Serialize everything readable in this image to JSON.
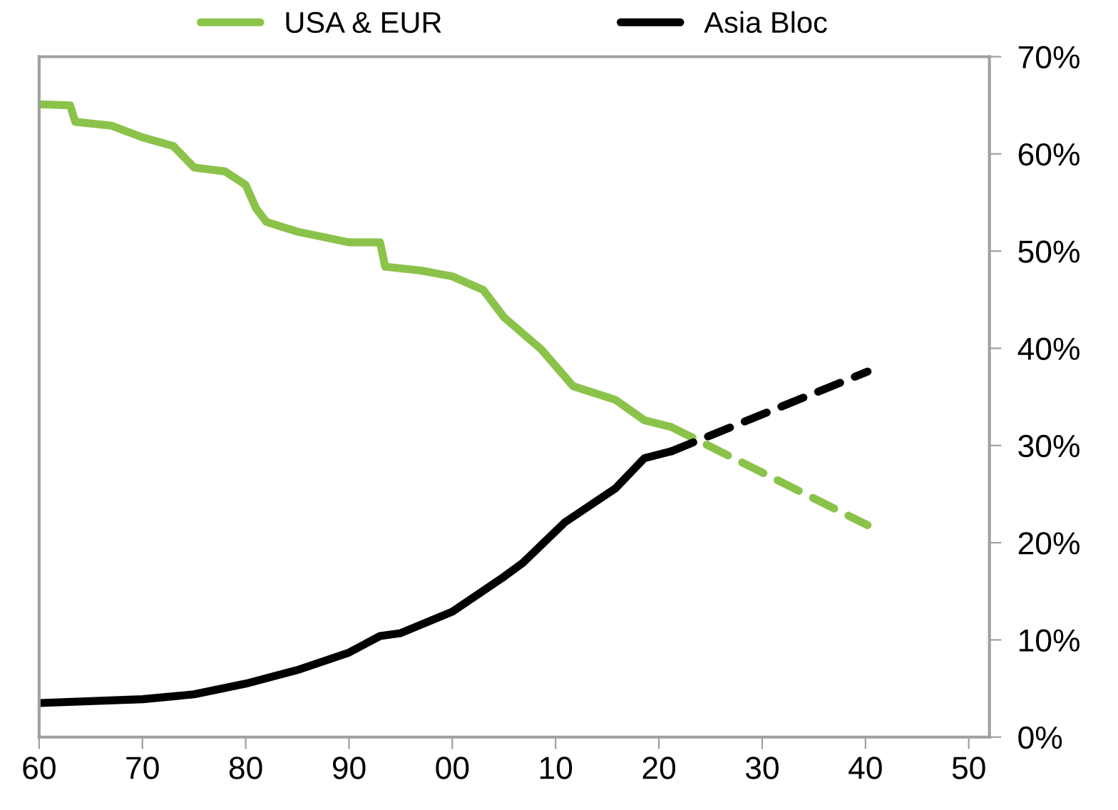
{
  "chart_data": {
    "type": "line",
    "xlim": [
      1960,
      2052
    ],
    "xticks": [
      {
        "value": 1960,
        "label": "60"
      },
      {
        "value": 1970,
        "label": "70"
      },
      {
        "value": 1980,
        "label": "80"
      },
      {
        "value": 1990,
        "label": "90"
      },
      {
        "value": 2000,
        "label": "00"
      },
      {
        "value": 2010,
        "label": "10"
      },
      {
        "value": 2020,
        "label": "20"
      },
      {
        "value": 2030,
        "label": "30"
      },
      {
        "value": 2040,
        "label": "40"
      },
      {
        "value": 2050,
        "label": "50"
      }
    ],
    "ylim": [
      0,
      70
    ],
    "yticks": [
      {
        "value": 0,
        "label": "0%"
      },
      {
        "value": 10,
        "label": "10%"
      },
      {
        "value": 20,
        "label": "20%"
      },
      {
        "value": 30,
        "label": "30%"
      },
      {
        "value": 40,
        "label": "40%"
      },
      {
        "value": 50,
        "label": "50%"
      },
      {
        "value": 60,
        "label": "60%"
      },
      {
        "value": 70,
        "label": "70%"
      }
    ],
    "grid": false,
    "legend": "top",
    "marker": "none",
    "series": [
      {
        "name": "USA & EUR",
        "color": "#8bc34a",
        "line_style": "solid",
        "x": [
          1960,
          1963,
          1963.5,
          1967,
          1970,
          1973,
          1975,
          1978,
          1980,
          1981,
          1982,
          1985,
          1990,
          1993,
          1993.5,
          1997,
          2000,
          2003,
          2005,
          2008.6,
          2011.7,
          2015.8,
          2018.6,
          2021.2
        ],
        "values": [
          65.1,
          65.0,
          63.3,
          62.9,
          61.7,
          60.8,
          58.6,
          58.2,
          56.8,
          54.4,
          53.0,
          52.0,
          50.9,
          50.9,
          48.4,
          48.0,
          47.4,
          46.0,
          43.2,
          39.9,
          36.1,
          34.7,
          32.6,
          31.9
        ]
      },
      {
        "color": "#8bc34a",
        "line_style": "dashed",
        "x": [
          2021.2,
          2040.2
        ],
        "values": [
          31.9,
          21.8
        ]
      },
      {
        "name": "Asia Bloc",
        "color": "#000000",
        "line_style": "solid",
        "x": [
          1960,
          1970,
          1975,
          1980,
          1985,
          1990,
          1993,
          1995,
          2000,
          2005,
          2006.8,
          2010.9,
          2015.8,
          2018.6,
          2021.2
        ],
        "values": [
          3.5,
          3.9,
          4.4,
          5.5,
          6.9,
          8.7,
          10.4,
          10.7,
          12.9,
          16.5,
          17.9,
          22.1,
          25.6,
          28.7,
          29.4
        ]
      },
      {
        "color": "#000000",
        "line_style": "dashed",
        "x": [
          2021.2,
          2040.2
        ],
        "values": [
          29.4,
          37.6
        ]
      }
    ]
  }
}
